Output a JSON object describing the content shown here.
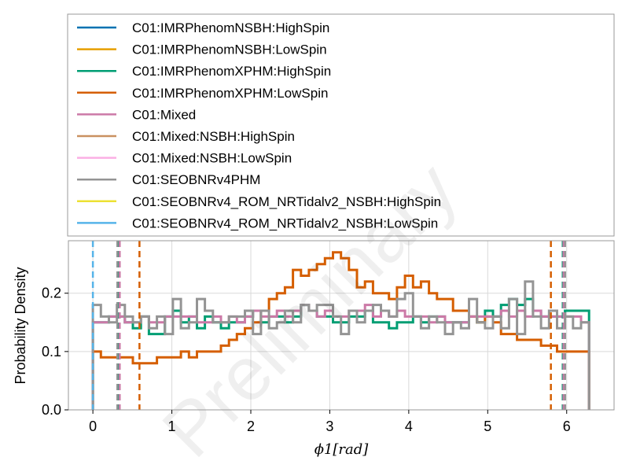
{
  "chart_data": {
    "type": "line",
    "style": "step-histogram",
    "xlabel": "ϕ1[rad]",
    "ylabel": "Probability Density",
    "watermark": "Preliminary",
    "xlim": [
      -0.31,
      6.6
    ],
    "ylim": [
      0,
      0.29
    ],
    "xticks": [
      0,
      1,
      2,
      3,
      4,
      5,
      6
    ],
    "yticks": [
      0.0,
      0.1,
      0.2
    ],
    "ytick_labels": [
      "0.0",
      "0.1",
      "0.2"
    ],
    "grid": true,
    "legend_position": "above",
    "bin_edges_range": [
      0,
      6.2832
    ],
    "series": [
      {
        "name": "C01:IMRPhenomNSBH:HighSpin",
        "color": "#0072b2",
        "values": [],
        "interval": []
      },
      {
        "name": "C01:IMRPhenomNSBH:LowSpin",
        "color": "#e69f00",
        "values": [],
        "interval": []
      },
      {
        "name": "C01:IMRPhenomXPHM:HighSpin",
        "color": "#009e73",
        "values": [
          0.15,
          0.15,
          0.16,
          0.16,
          0.15,
          0.14,
          0.16,
          0.13,
          0.13,
          0.16,
          0.17,
          0.15,
          0.16,
          0.14,
          0.16,
          0.15,
          0.14,
          0.15,
          0.15,
          0.16,
          0.17,
          0.15,
          0.16,
          0.16,
          0.15,
          0.16,
          0.18,
          0.17,
          0.16,
          0.16,
          0.15,
          0.15,
          0.16,
          0.16,
          0.17,
          0.15,
          0.15,
          0.14,
          0.15,
          0.15,
          0.16,
          0.15,
          0.16,
          0.16,
          0.15,
          0.15,
          0.15,
          0.16,
          0.15,
          0.17,
          0.16,
          0.18,
          0.19,
          0.18,
          0.19,
          0.17,
          0.16,
          0.16,
          0.16,
          0.17,
          0.17,
          0.17
        ],
        "interval": [
          0.33,
          5.95
        ]
      },
      {
        "name": "C01:IMRPhenomXPHM:LowSpin",
        "color": "#d55e00",
        "values": [
          0.1,
          0.09,
          0.09,
          0.09,
          0.09,
          0.08,
          0.08,
          0.08,
          0.09,
          0.09,
          0.09,
          0.1,
          0.09,
          0.1,
          0.1,
          0.1,
          0.11,
          0.12,
          0.13,
          0.14,
          0.15,
          0.17,
          0.19,
          0.2,
          0.21,
          0.24,
          0.23,
          0.24,
          0.25,
          0.26,
          0.27,
          0.26,
          0.24,
          0.21,
          0.22,
          0.2,
          0.2,
          0.19,
          0.21,
          0.23,
          0.21,
          0.22,
          0.2,
          0.19,
          0.19,
          0.17,
          0.17,
          0.16,
          0.15,
          0.16,
          0.15,
          0.13,
          0.13,
          0.12,
          0.12,
          0.12,
          0.11,
          0.11,
          0.1,
          0.1,
          0.1,
          0.1
        ],
        "interval": [
          0.59,
          5.8
        ]
      },
      {
        "name": "C01:Mixed",
        "color": "#cc79a7",
        "values": [
          0.15,
          0.15,
          0.16,
          0.16,
          0.15,
          0.15,
          0.16,
          0.15,
          0.15,
          0.16,
          0.16,
          0.16,
          0.16,
          0.15,
          0.15,
          0.16,
          0.15,
          0.16,
          0.15,
          0.16,
          0.17,
          0.16,
          0.16,
          0.17,
          0.16,
          0.17,
          0.18,
          0.17,
          0.16,
          0.17,
          0.16,
          0.16,
          0.17,
          0.17,
          0.18,
          0.16,
          0.17,
          0.16,
          0.17,
          0.16,
          0.16,
          0.16,
          0.15,
          0.16,
          0.15,
          0.15,
          0.15,
          0.16,
          0.16,
          0.16,
          0.16,
          0.17,
          0.16,
          0.17,
          0.16,
          0.17,
          0.16,
          0.16,
          0.16,
          0.16,
          0.16,
          0.15
        ],
        "interval": [
          0.34,
          5.96
        ]
      },
      {
        "name": "C01:Mixed:NSBH:HighSpin",
        "color": "#ca9161",
        "values": [],
        "interval": []
      },
      {
        "name": "C01:Mixed:NSBH:LowSpin",
        "color": "#fbafe4",
        "values": [],
        "interval": []
      },
      {
        "name": "C01:SEOBNRv4PHM",
        "color": "#949494",
        "values": [
          0.18,
          0.16,
          0.15,
          0.18,
          0.16,
          0.15,
          0.16,
          0.14,
          0.16,
          0.13,
          0.19,
          0.14,
          0.15,
          0.19,
          0.17,
          0.15,
          0.15,
          0.16,
          0.16,
          0.17,
          0.13,
          0.17,
          0.14,
          0.15,
          0.17,
          0.15,
          0.18,
          0.17,
          0.18,
          0.18,
          0.16,
          0.13,
          0.17,
          0.15,
          0.17,
          0.18,
          0.17,
          0.16,
          0.19,
          0.2,
          0.16,
          0.14,
          0.16,
          0.15,
          0.13,
          0.15,
          0.14,
          0.19,
          0.15,
          0.14,
          0.16,
          0.14,
          0.19,
          0.13,
          0.22,
          0.16,
          0.14,
          0.17,
          0.14,
          0.16,
          0.14,
          0.15
        ],
        "interval": [
          0.31,
          5.98
        ]
      },
      {
        "name": "C01:SEOBNRv4_ROM_NRTidalv2_NSBH:HighSpin",
        "color": "#ece133",
        "values": [],
        "interval": []
      },
      {
        "name": "C01:SEOBNRv4_ROM_NRTidalv2_NSBH:LowSpin",
        "color": "#56b4e9",
        "values": [],
        "interval": []
      }
    ]
  }
}
